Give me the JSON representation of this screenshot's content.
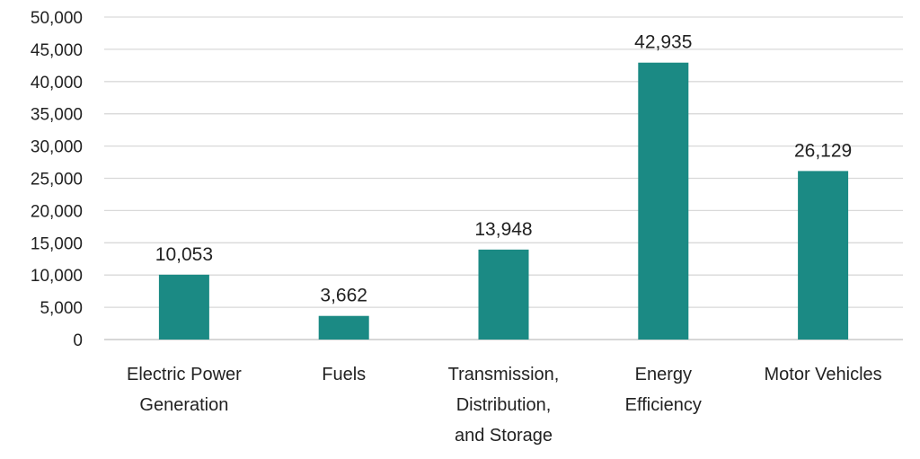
{
  "chart_data": {
    "type": "bar",
    "title": "",
    "xlabel": "",
    "ylabel": "",
    "categories": [
      [
        "Electric Power",
        "Generation"
      ],
      [
        "Fuels"
      ],
      [
        "Transmission,",
        "Distribution,",
        "and Storage"
      ],
      [
        "Energy",
        "Efficiency"
      ],
      [
        "Motor Vehicles"
      ]
    ],
    "values": [
      10053,
      3662,
      13948,
      42935,
      26129
    ],
    "data_labels": [
      "10,053",
      "3,662",
      "13,948",
      "42,935",
      "26,129"
    ],
    "ylim": [
      0,
      50000
    ],
    "yticks": [
      0,
      5000,
      10000,
      15000,
      20000,
      25000,
      30000,
      35000,
      40000,
      45000,
      50000
    ],
    "ytick_labels": [
      "0",
      "5,000",
      "10,000",
      "15,000",
      "20,000",
      "25,000",
      "30,000",
      "35,000",
      "40,000",
      "45,000",
      "50,000"
    ],
    "grid": true,
    "legend": "none",
    "colors": {
      "bar": "#1b8a84"
    }
  }
}
